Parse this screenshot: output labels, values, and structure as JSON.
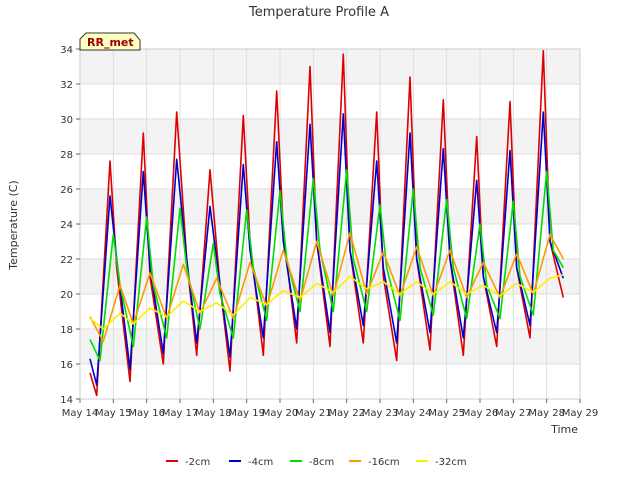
{
  "chart_data": {
    "type": "line",
    "title": "Temperature Profile A",
    "xlabel": "Time",
    "ylabel": "Temperature (C)",
    "station_label": "RR_met",
    "xlim": [
      14,
      29
    ],
    "ylim": [
      14,
      34
    ],
    "x_ticks": [
      {
        "v": 14,
        "label": "May 14"
      },
      {
        "v": 15,
        "label": "May 15"
      },
      {
        "v": 16,
        "label": "May 16"
      },
      {
        "v": 17,
        "label": "May 17"
      },
      {
        "v": 18,
        "label": "May 18"
      },
      {
        "v": 19,
        "label": "May 19"
      },
      {
        "v": 20,
        "label": "May 20"
      },
      {
        "v": 21,
        "label": "May 21"
      },
      {
        "v": 22,
        "label": "May 22"
      },
      {
        "v": 23,
        "label": "May 23"
      },
      {
        "v": 24,
        "label": "May 24"
      },
      {
        "v": 25,
        "label": "May 25"
      },
      {
        "v": 26,
        "label": "May 26"
      },
      {
        "v": 27,
        "label": "May 27"
      },
      {
        "v": 28,
        "label": "May 28"
      },
      {
        "v": 29,
        "label": "May 29"
      }
    ],
    "y_ticks": [
      14,
      16,
      18,
      20,
      22,
      24,
      26,
      28,
      30,
      32,
      34
    ],
    "grid": true,
    "legend": "bottom",
    "series": [
      {
        "name": "-2cm",
        "color": "#dd0000",
        "x": [
          14.3,
          14.5,
          14.9,
          15.1,
          15.5,
          15.9,
          16.1,
          16.5,
          16.9,
          17.2,
          17.5,
          17.9,
          18.2,
          18.5,
          18.9,
          19.1,
          19.5,
          19.9,
          20.1,
          20.5,
          20.9,
          21.1,
          21.5,
          21.9,
          22.1,
          22.5,
          22.9,
          23.1,
          23.5,
          23.9,
          24.1,
          24.5,
          24.9,
          25.1,
          25.5,
          25.9,
          26.1,
          26.5,
          26.9,
          27.1,
          27.5,
          27.9,
          28.1,
          28.5
        ],
        "y": [
          15.5,
          14.2,
          27.6,
          21.5,
          15.0,
          29.2,
          21.0,
          16.0,
          30.4,
          22.0,
          16.5,
          27.1,
          20.5,
          15.6,
          30.2,
          23.0,
          16.5,
          31.6,
          23.5,
          17.2,
          33.0,
          23.0,
          17.0,
          33.7,
          22.5,
          17.2,
          30.4,
          21.0,
          16.2,
          32.4,
          22.0,
          16.8,
          31.1,
          22.0,
          16.5,
          29.0,
          21.0,
          17.0,
          31.0,
          21.5,
          17.5,
          33.9,
          23.0,
          19.8
        ]
      },
      {
        "name": "-4cm",
        "color": "#0000cc",
        "x": [
          14.3,
          14.5,
          14.9,
          15.1,
          15.5,
          15.9,
          16.1,
          16.5,
          16.9,
          17.2,
          17.5,
          17.9,
          18.2,
          18.5,
          18.9,
          19.1,
          19.5,
          19.9,
          20.1,
          20.5,
          20.9,
          21.1,
          21.5,
          21.9,
          22.1,
          22.5,
          22.9,
          23.1,
          23.5,
          23.9,
          24.1,
          24.5,
          24.9,
          25.1,
          25.5,
          25.9,
          26.1,
          26.5,
          26.9,
          27.1,
          27.5,
          27.9,
          28.1,
          28.5
        ],
        "y": [
          16.3,
          14.8,
          25.6,
          22.0,
          15.7,
          27.0,
          21.5,
          16.6,
          27.7,
          22.0,
          17.2,
          25.0,
          20.5,
          16.4,
          27.4,
          22.5,
          17.5,
          28.7,
          23.0,
          18.0,
          29.7,
          23.0,
          17.8,
          30.3,
          22.5,
          18.2,
          27.6,
          21.5,
          17.2,
          29.2,
          22.0,
          17.8,
          28.3,
          22.0,
          17.5,
          26.5,
          21.0,
          17.8,
          28.2,
          21.5,
          18.2,
          30.4,
          23.0,
          20.9
        ]
      },
      {
        "name": "-8cm",
        "color": "#00dd00",
        "x": [
          14.3,
          14.6,
          15.0,
          15.2,
          15.6,
          16.0,
          16.2,
          16.6,
          17.0,
          17.2,
          17.6,
          18.0,
          18.2,
          18.6,
          19.0,
          19.2,
          19.6,
          20.0,
          20.2,
          20.6,
          21.0,
          21.2,
          21.6,
          22.0,
          22.2,
          22.6,
          23.0,
          23.2,
          23.6,
          24.0,
          24.2,
          24.6,
          25.0,
          25.2,
          25.6,
          26.0,
          26.2,
          26.6,
          27.0,
          27.2,
          27.6,
          28.0,
          28.2,
          28.5
        ],
        "y": [
          17.4,
          16.2,
          23.4,
          20.5,
          17.0,
          24.4,
          20.5,
          17.5,
          24.9,
          21.5,
          18.0,
          22.9,
          20.0,
          17.5,
          24.8,
          21.5,
          18.5,
          25.9,
          22.0,
          19.0,
          26.6,
          22.5,
          19.0,
          27.1,
          22.0,
          19.0,
          25.1,
          21.5,
          18.5,
          26.0,
          21.5,
          18.8,
          25.4,
          21.5,
          18.6,
          24.0,
          20.5,
          18.6,
          25.3,
          21.0,
          18.8,
          27.0,
          22.5,
          21.5
        ]
      },
      {
        "name": "-16cm",
        "color": "#ff9900",
        "x": [
          14.3,
          14.7,
          15.2,
          15.6,
          16.1,
          16.6,
          17.1,
          17.6,
          18.1,
          18.6,
          19.1,
          19.6,
          20.1,
          20.6,
          21.1,
          21.6,
          22.1,
          22.6,
          23.1,
          23.6,
          24.1,
          24.6,
          25.1,
          25.6,
          26.1,
          26.6,
          27.1,
          27.6,
          28.1,
          28.5
        ],
        "y": [
          18.7,
          17.3,
          20.5,
          18.3,
          21.2,
          18.6,
          21.7,
          18.9,
          20.9,
          18.6,
          21.8,
          19.3,
          22.5,
          19.6,
          23.0,
          19.9,
          23.5,
          20.0,
          22.4,
          19.9,
          22.7,
          19.9,
          22.5,
          19.8,
          21.8,
          19.8,
          22.3,
          20.0,
          23.4,
          22.0
        ]
      },
      {
        "name": "-32cm",
        "color": "#ffee00",
        "x": [
          14.3,
          14.7,
          15.2,
          15.6,
          16.1,
          16.6,
          17.1,
          17.6,
          18.1,
          18.6,
          19.1,
          19.6,
          20.1,
          20.6,
          21.1,
          21.6,
          22.1,
          22.6,
          23.1,
          23.6,
          24.1,
          24.6,
          25.1,
          25.6,
          26.1,
          26.6,
          27.1,
          27.6,
          28.1,
          28.5
        ],
        "y": [
          18.6,
          18.0,
          18.9,
          18.3,
          19.2,
          18.7,
          19.6,
          19.0,
          19.5,
          18.8,
          19.8,
          19.4,
          20.2,
          19.8,
          20.6,
          20.1,
          21.0,
          20.3,
          20.7,
          20.0,
          20.7,
          20.0,
          20.7,
          20.0,
          20.5,
          19.9,
          20.6,
          20.1,
          20.9,
          21.1
        ]
      }
    ]
  }
}
